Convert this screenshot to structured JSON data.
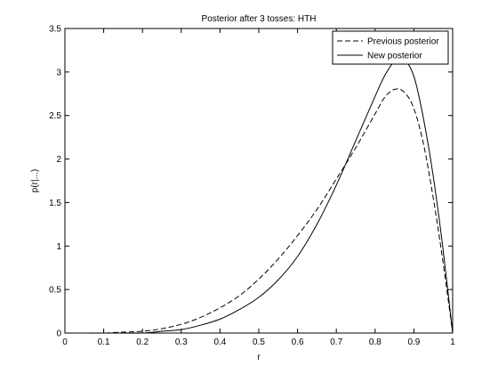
{
  "chart_data": {
    "type": "line",
    "title": "Posterior after 3 tosses: HTH",
    "xlabel": "r",
    "ylabel": "p(r|...)",
    "xlim": [
      0,
      1
    ],
    "ylim": [
      0,
      3.5
    ],
    "xticks": [
      "0",
      "0.1",
      "0.2",
      "0.3",
      "0.4",
      "0.5",
      "0.6",
      "0.7",
      "0.8",
      "0.9",
      "1"
    ],
    "yticks": [
      "0",
      "0.5",
      "1",
      "1.5",
      "2",
      "2.5",
      "3",
      "3.5"
    ],
    "grid": false,
    "legend_position": "top-right",
    "series": [
      {
        "name": "Previous posterior",
        "style": "dashed",
        "color": "#000000",
        "x": [
          0,
          0.05,
          0.1,
          0.15,
          0.2,
          0.25,
          0.3,
          0.35,
          0.4,
          0.45,
          0.5,
          0.55,
          0.6,
          0.65,
          0.7,
          0.75,
          0.8,
          0.825,
          0.85,
          0.875,
          0.9,
          0.925,
          0.95,
          0.975,
          1
        ],
        "y": [
          0,
          0.0,
          0.0,
          0.01,
          0.02,
          0.05,
          0.1,
          0.18,
          0.29,
          0.43,
          0.62,
          0.85,
          1.12,
          1.42,
          1.77,
          2.13,
          2.52,
          2.71,
          2.8,
          2.77,
          2.58,
          2.17,
          1.55,
          0.82,
          0
        ]
      },
      {
        "name": "New posterior",
        "style": "solid",
        "color": "#000000",
        "x": [
          0,
          0.05,
          0.1,
          0.15,
          0.2,
          0.25,
          0.3,
          0.35,
          0.4,
          0.45,
          0.5,
          0.55,
          0.6,
          0.65,
          0.7,
          0.75,
          0.8,
          0.825,
          0.85,
          0.875,
          0.9,
          0.925,
          0.95,
          0.975,
          1
        ],
        "y": [
          0,
          0.0,
          0.0,
          0.0,
          0.0,
          0.02,
          0.04,
          0.09,
          0.16,
          0.27,
          0.41,
          0.61,
          0.88,
          1.25,
          1.7,
          2.21,
          2.72,
          2.96,
          3.12,
          3.14,
          2.95,
          2.46,
          1.8,
          0.97,
          0
        ]
      }
    ]
  }
}
